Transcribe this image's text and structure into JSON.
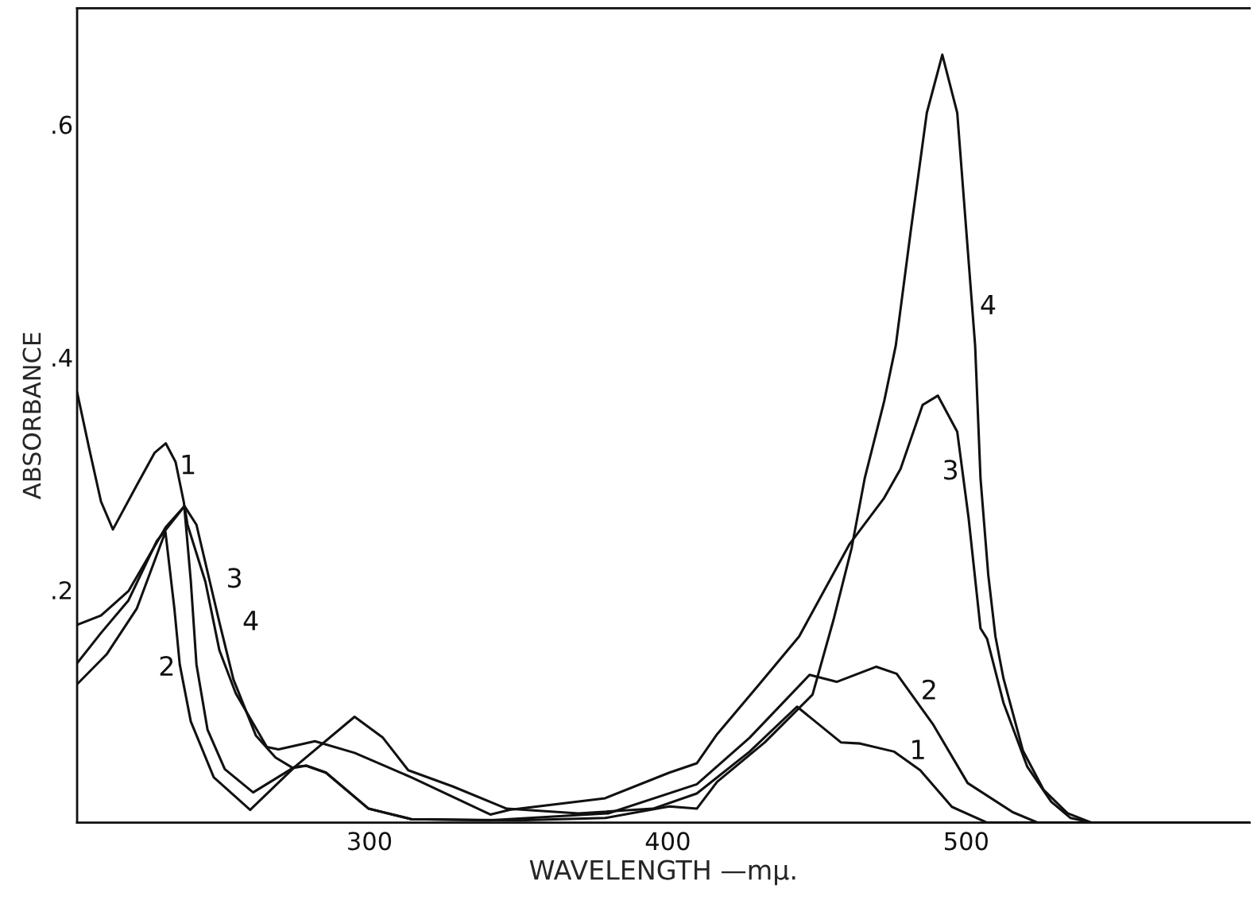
{
  "chart_data": {
    "type": "line",
    "xlabel": "WAVELENGTH —mμ.",
    "ylabel": "ABSORBANCE",
    "xlim": [
      202,
      595
    ],
    "ylim": [
      0,
      0.7
    ],
    "xticks": [
      300,
      400,
      500
    ],
    "yticks": [
      {
        "value": 0.2,
        "label": ".2"
      },
      {
        "value": 0.4,
        "label": ".4"
      },
      {
        "value": 0.6,
        "label": ".6"
      }
    ],
    "grid": false,
    "marker": "none",
    "line_style": "solid",
    "series": [
      {
        "color": "#111111",
        "x": [
          202,
          206,
          210,
          214,
          222,
          228,
          231.7,
          235,
          237.8,
          240.1,
          242,
          245.7,
          251.5,
          261,
          275,
          295,
          304.5,
          313,
          328,
          346,
          370,
          395,
          409.7,
          427.4,
          443.3,
          458,
          464.5,
          475.9,
          484.6,
          495.2,
          507,
          595
        ],
        "values": [
          0.37,
          0.322,
          0.276,
          0.252,
          0.29,
          0.318,
          0.326,
          0.31,
          0.275,
          0.208,
          0.136,
          0.08,
          0.046,
          0.026,
          0.048,
          0.091,
          0.073,
          0.045,
          0.031,
          0.012,
          0.008,
          0.012,
          0.025,
          0.061,
          0.0997,
          0.069,
          0.068,
          0.061,
          0.045,
          0.0136,
          0,
          0
        ]
      },
      {
        "color": "#111111",
        "x": [
          202,
          212,
          222,
          231.6,
          234.6,
          236.4,
          240.1,
          247.8,
          260,
          275,
          278.8,
          285.4,
          299.7,
          314,
          340,
          380,
          409.7,
          427.4,
          447.5,
          456.6,
          469.8,
          476.7,
          489,
          500.5,
          515.6,
          524,
          595
        ],
        "values": [
          0.119,
          0.145,
          0.184,
          0.25,
          0.184,
          0.136,
          0.087,
          0.039,
          0.011,
          0.048,
          0.049,
          0.043,
          0.012,
          0.003,
          0.002,
          0.008,
          0.033,
          0.073,
          0.127,
          0.121,
          0.134,
          0.128,
          0.084,
          0.034,
          0.009,
          0,
          0
        ]
      },
      {
        "color": "#111111",
        "x": [
          202,
          210,
          219.2,
          225.8,
          231.7,
          238,
          239,
          245,
          249.7,
          255.2,
          265.6,
          269.5,
          281.7,
          295,
          314,
          340.5,
          347,
          379,
          400.5,
          409.7,
          416.5,
          430,
          444,
          460.8,
          472.5,
          478,
          485.4,
          490.5,
          497,
          500.8,
          504.8,
          507,
          512.5,
          520.5,
          528.5,
          535,
          542,
          595
        ],
        "values": [
          0.17,
          0.178,
          0.199,
          0.228,
          0.254,
          0.272,
          0.256,
          0.207,
          0.148,
          0.111,
          0.065,
          0.063,
          0.07,
          0.06,
          0.039,
          0.007,
          0.011,
          0.021,
          0.043,
          0.051,
          0.076,
          0.117,
          0.16,
          0.239,
          0.279,
          0.304,
          0.359,
          0.367,
          0.336,
          0.262,
          0.167,
          0.158,
          0.103,
          0.048,
          0.018,
          0.004,
          0,
          0
        ]
      },
      {
        "color": "#111111",
        "x": [
          202,
          210,
          219.2,
          228.7,
          238,
          242,
          249.7,
          254.4,
          261.9,
          268.5,
          274.3,
          278.8,
          285.4,
          299.7,
          314,
          350,
          379,
          400.5,
          409.7,
          416.5,
          432.5,
          448.5,
          455.5,
          461.6,
          466,
          472.5,
          476.4,
          481.5,
          486.8,
          492,
          497,
          500,
          503,
          504.8,
          507.4,
          509.8,
          512.5,
          519,
          526,
          534,
          542,
          595
        ],
        "values": [
          0.137,
          0.163,
          0.191,
          0.242,
          0.272,
          0.256,
          0.172,
          0.123,
          0.075,
          0.056,
          0.047,
          0.049,
          0.043,
          0.012,
          0.003,
          0.002,
          0.004,
          0.014,
          0.012,
          0.035,
          0.069,
          0.11,
          0.174,
          0.236,
          0.296,
          0.362,
          0.41,
          0.51,
          0.61,
          0.66,
          0.61,
          0.51,
          0.41,
          0.296,
          0.213,
          0.16,
          0.124,
          0.062,
          0.028,
          0.008,
          0,
          0
        ]
      }
    ],
    "annotations": [
      "1",
      "2",
      "3",
      "4",
      "4",
      "3",
      "2",
      "1"
    ]
  }
}
